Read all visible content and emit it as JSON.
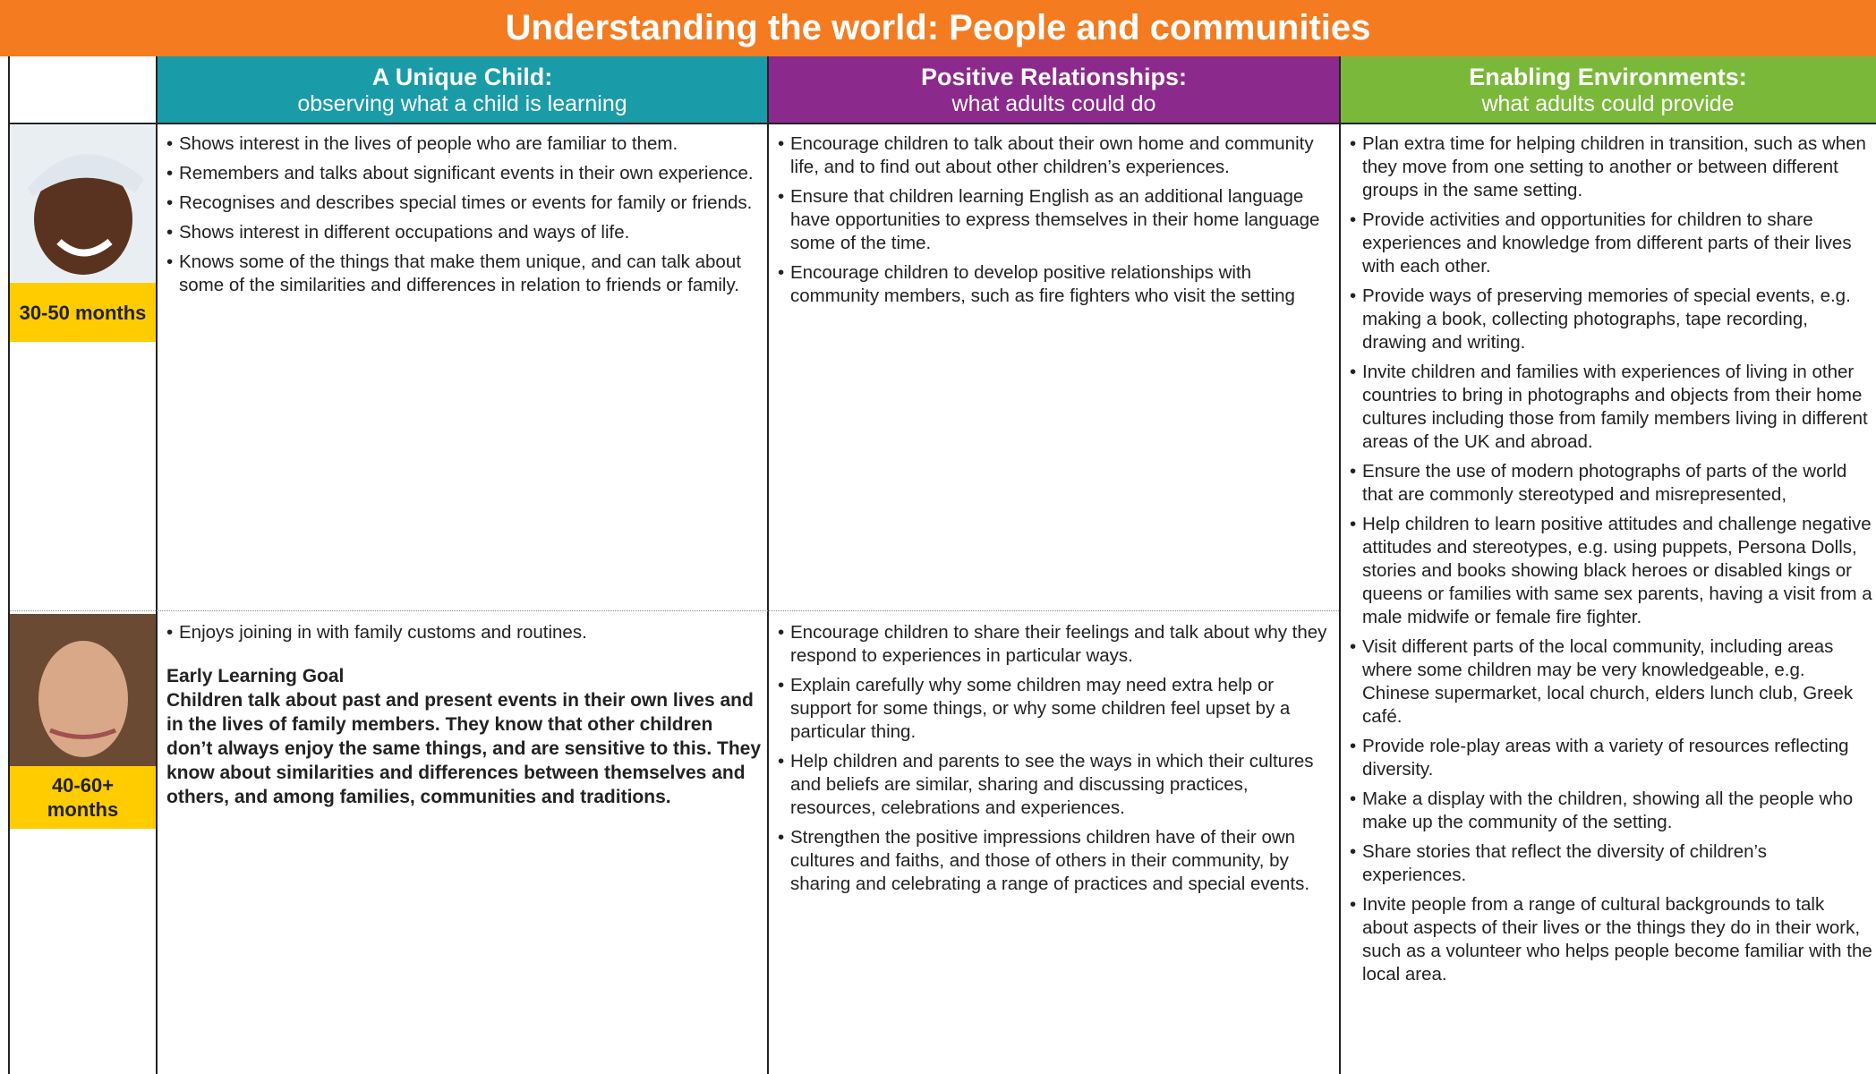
{
  "title": "Understanding the world: People and communities",
  "headers": [
    {
      "title": "A Unique Child:",
      "subtitle": "observing what a child is learning"
    },
    {
      "title": "Positive Relationships:",
      "subtitle": "what adults could do"
    },
    {
      "title": "Enabling Environments:",
      "subtitle": "what adults could provide"
    }
  ],
  "rows": [
    {
      "age": "30-50 months",
      "child": [
        "Shows interest in the lives of people who are familiar to them.",
        "Remembers and talks about significant events in their own experience.",
        "Recognises and describes special times or events for family or friends.",
        "Shows interest in different occupations and ways of life.",
        "Knows some of the things that make them unique, and can talk about some of the similarities and differences in relation to friends or family."
      ],
      "adults": [
        "Encourage children to talk about their own home and community life, and to find out about other children’s experiences.",
        "Ensure that children learning English as an additional language have opportunities to express themselves in their home language some of the time.",
        "Encourage children to develop positive relationships with community members, such as fire fighters who visit the setting"
      ]
    },
    {
      "age": "40-60+ months",
      "child": [
        "Enjoys joining in with family customs and routines."
      ],
      "goal_heading": "Early Learning Goal",
      "goal": "Children talk about past and present events in their own lives and in the lives of family members. They know that other children don’t always enjoy the same things, and are sensitive to this. They know about similarities and differences between themselves and others, and among families, communities and traditions.",
      "adults": [
        "Encourage children to share their feelings and talk about why they respond to experiences in particular ways.",
        "Explain carefully why some children may need extra help or support for some things, or why some children feel upset by a particular thing.",
        "Help children and parents to see the ways in which their cultures and beliefs are similar, sharing and discussing practices, resources, celebrations and experiences.",
        "Strengthen the positive impressions children have of their own cultures and faiths, and those of others in their community, by sharing and celebrating a range of practices and special events."
      ]
    }
  ],
  "environments": [
    "Plan extra time for helping children in transition, such as when they move from one setting to another or between different groups in the same setting.",
    "Provide activities and opportunities for children to share experiences and knowledge from different parts of their lives with each other.",
    "Provide ways of preserving memories of special events, e.g. making a book, collecting photographs, tape recording, drawing and writing.",
    "Invite children and families with experiences of living in other countries to bring in photographs and objects from their home cultures including those from family members living in different areas of the UK and abroad.",
    "Ensure the use of modern photographs of parts of the world that are commonly stereotyped and misrepresented,",
    "Help children to learn positive attitudes and challenge negative attitudes and stereotypes, e.g. using puppets, Persona Dolls, stories and books showing black heroes or disabled kings or queens or families with same sex parents, having a visit from a male midwife or female fire fighter.",
    "Visit different parts of the local community, including areas where some children may be very knowledgeable, e.g. Chinese supermarket, local church, elders lunch club, Greek café.",
    "Provide role-play areas with a variety of resources reflecting diversity.",
    "Make a display with the children, showing all the people who make up the community of the setting.",
    "Share stories that reflect the diversity of children’s experiences.",
    "Invite people from a range of cultural backgrounds to talk about aspects of their lives or the things they do in their work, such as a volunteer who helps people become familiar with the local area."
  ]
}
